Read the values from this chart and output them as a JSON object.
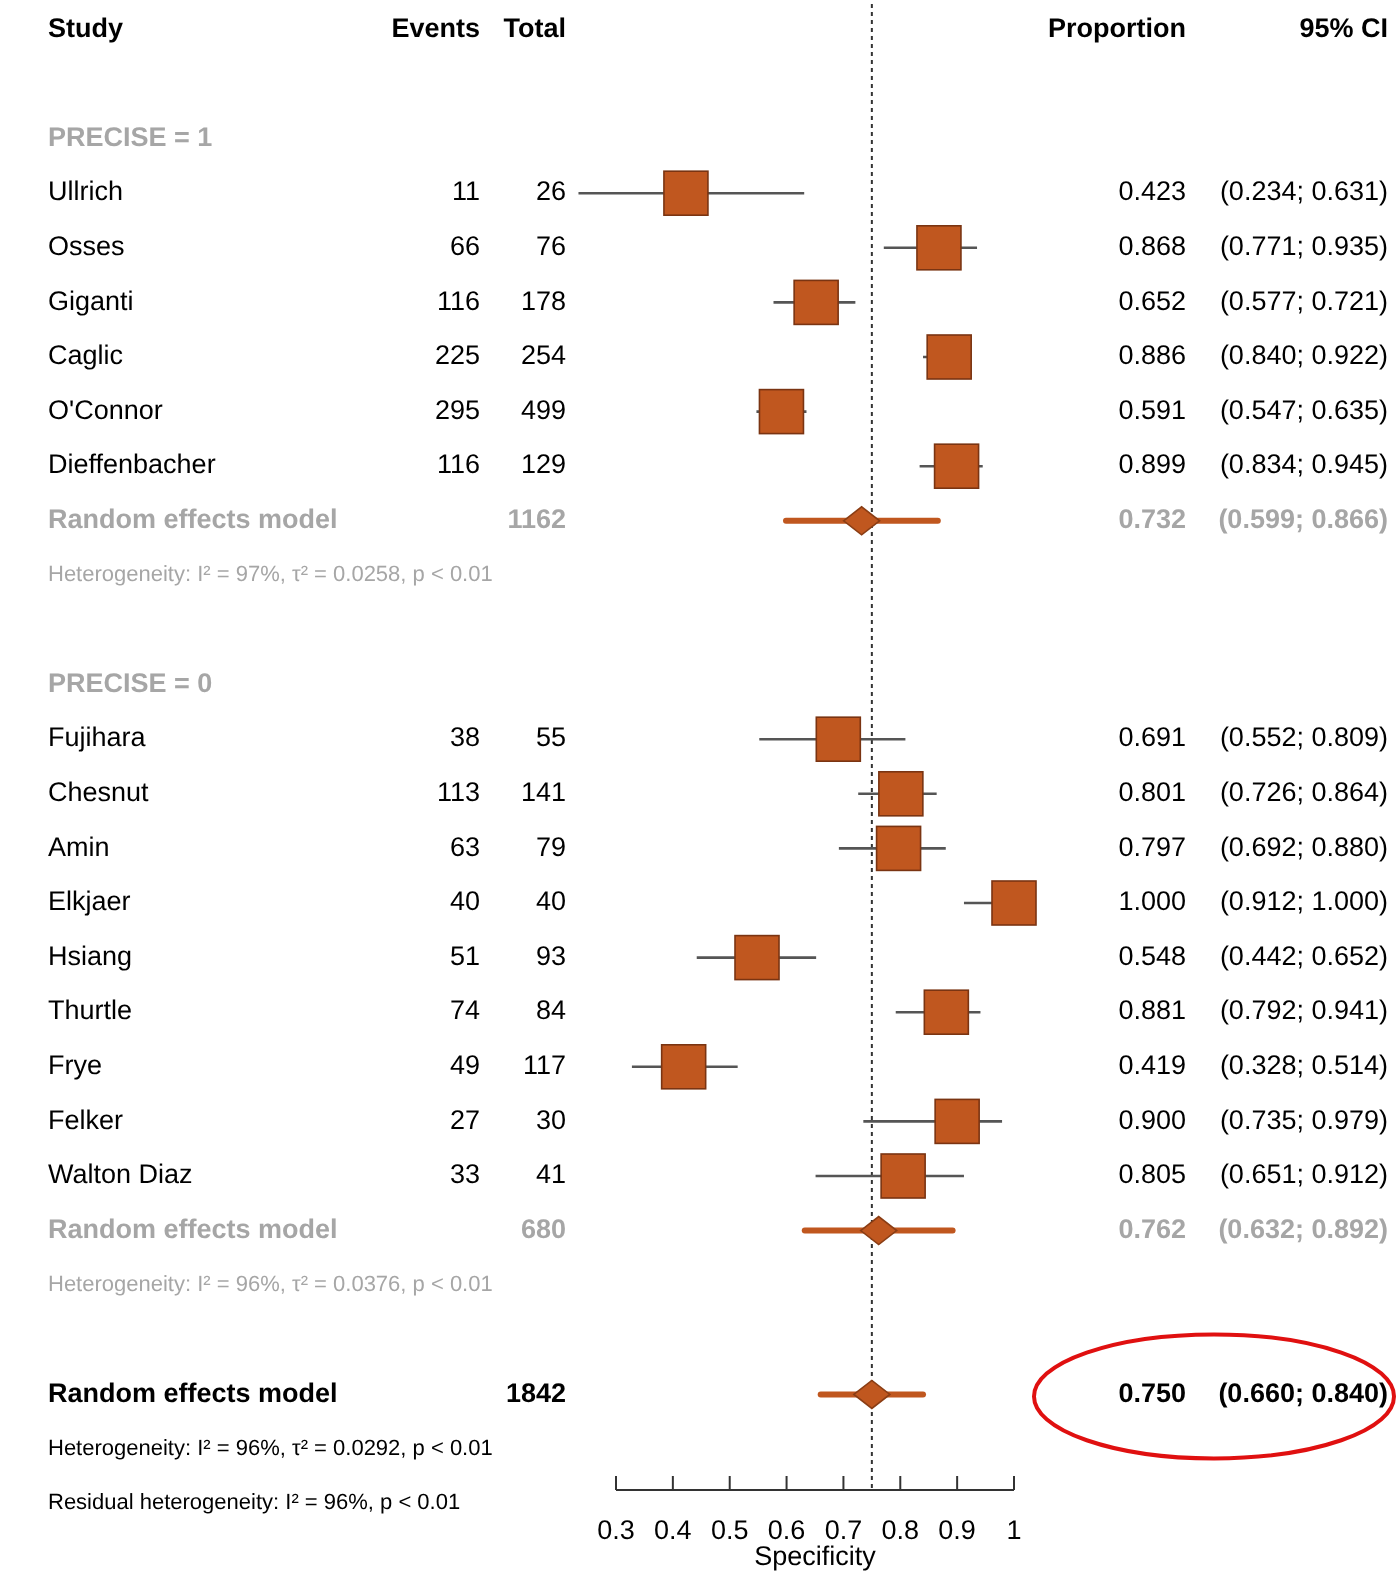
{
  "chart_data": {
    "type": "scatter",
    "orientation": "horizontal",
    "xlabel": "Specificity",
    "xlim": [
      0.3,
      1
    ],
    "xticks": [
      0.3,
      0.4,
      0.5,
      0.6,
      0.7,
      0.8,
      0.9,
      1
    ],
    "grid": false,
    "categories": [
      null,
      "PRECISE = 1",
      "Ullrich",
      "Osses",
      "Giganti",
      "Caglic",
      "O'Connor",
      "Dieffenbacher",
      "Random effects model",
      "Heterogeneity: I² = 97%, τ² = 0.0258, p < 0.01",
      null,
      "PRECISE = 0",
      "Fujihara",
      "Chesnut",
      "Amin",
      "Elkjaer",
      "Hsiang",
      "Thurtle",
      "Frye",
      "Felker",
      "Walton Diaz",
      "Random effects model",
      "Heterogeneity: I² = 96%, τ² = 0.0376, p < 0.01",
      null,
      "Random effects model",
      "Heterogeneity: I² = 96%, τ² = 0.0292, p < 0.01",
      "Residual heterogeneity: I² = 96%, p < 0.01"
    ],
    "series": [
      {
        "color": "#c0571f",
        "marker": "square",
        "values": [
          null,
          null,
          0.423,
          0.868,
          0.652,
          0.886,
          0.591,
          0.899,
          null,
          null,
          null,
          null,
          0.691,
          0.801,
          0.797,
          1.0,
          0.548,
          0.881,
          0.419,
          0.9,
          0.805,
          null,
          null,
          null,
          null,
          null,
          null
        ],
        "errors": [
          null,
          null,
          [
            0.234,
            0.631
          ],
          [
            0.771,
            0.935
          ],
          [
            0.577,
            0.721
          ],
          [
            0.84,
            0.922
          ],
          [
            0.547,
            0.635
          ],
          [
            0.834,
            0.945
          ],
          null,
          null,
          null,
          null,
          [
            0.552,
            0.809
          ],
          [
            0.726,
            0.864
          ],
          [
            0.692,
            0.88
          ],
          [
            0.912,
            1.0
          ],
          [
            0.442,
            0.652
          ],
          [
            0.792,
            0.941
          ],
          [
            0.328,
            0.514
          ],
          [
            0.735,
            0.979
          ],
          [
            0.651,
            0.912
          ],
          null,
          null,
          null,
          null,
          null,
          null
        ],
        "value_labels": [
          null,
          null,
          "0.423 (0.234; 0.631)",
          "0.868 (0.771; 0.935)",
          "0.652 (0.577; 0.721)",
          "0.886 (0.840; 0.922)",
          "0.591 (0.547; 0.635)",
          "0.899 (0.834; 0.945)",
          null,
          null,
          null,
          null,
          "0.691 (0.552; 0.809)",
          "0.801 (0.726; 0.864)",
          "0.797 (0.692; 0.880)",
          "1.000 (0.912; 1.000)",
          "0.548 (0.442; 0.652)",
          "0.881 (0.792; 0.941)",
          "0.419 (0.328; 0.514)",
          "0.900 (0.735; 0.979)",
          "0.805 (0.651; 0.912)",
          null,
          null,
          null,
          null,
          null,
          null
        ]
      },
      {
        "color": "#c0571f",
        "marker": "diamond",
        "values": [
          null,
          null,
          null,
          null,
          null,
          null,
          null,
          null,
          0.732,
          null,
          null,
          null,
          null,
          null,
          null,
          null,
          null,
          null,
          null,
          null,
          null,
          0.762,
          null,
          null,
          0.75,
          null,
          null
        ],
        "errors": [
          null,
          null,
          null,
          null,
          null,
          null,
          null,
          null,
          [
            0.599,
            0.866
          ],
          null,
          null,
          null,
          null,
          null,
          null,
          null,
          null,
          null,
          null,
          null,
          null,
          [
            0.632,
            0.892
          ],
          null,
          null,
          [
            0.66,
            0.84
          ],
          null,
          null
        ],
        "value_labels": [
          null,
          null,
          null,
          null,
          null,
          null,
          null,
          null,
          "0.732 (0.599; 0.866)",
          null,
          null,
          null,
          null,
          null,
          null,
          null,
          null,
          null,
          null,
          null,
          null,
          "0.762 (0.632; 0.892)",
          null,
          null,
          "0.750 (0.660; 0.840)",
          null,
          null
        ]
      }
    ],
    "ref_lines": [
      {
        "axis": "x",
        "value": 0.75,
        "line_style": "dotted"
      }
    ],
    "annotations": [
      "Study",
      "Events",
      "Total",
      "Proportion",
      "95% CI",
      "11",
      "26",
      "66",
      "76",
      "116",
      "178",
      "225",
      "254",
      "295",
      "499",
      "116",
      "129",
      "1162",
      "38",
      "55",
      "113",
      "141",
      "63",
      "79",
      "40",
      "40",
      "51",
      "93",
      "74",
      "84",
      "49",
      "117",
      "27",
      "30",
      "33",
      "41",
      "680",
      "1842"
    ]
  }
}
